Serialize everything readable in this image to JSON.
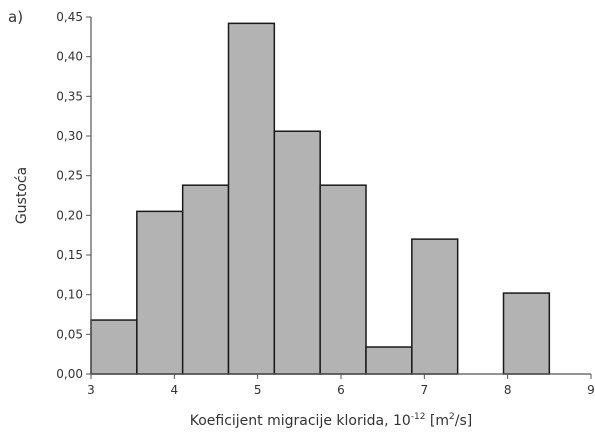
{
  "panel_label": "a)",
  "chart_data": {
    "type": "bar",
    "subtype": "histogram",
    "bins": [
      {
        "x0": 3.0,
        "x1": 3.55,
        "value": 0.068
      },
      {
        "x0": 3.55,
        "x1": 4.1,
        "value": 0.205
      },
      {
        "x0": 4.1,
        "x1": 4.65,
        "value": 0.238
      },
      {
        "x0": 4.65,
        "x1": 5.2,
        "value": 0.442
      },
      {
        "x0": 5.2,
        "x1": 5.75,
        "value": 0.306
      },
      {
        "x0": 5.75,
        "x1": 6.3,
        "value": 0.238
      },
      {
        "x0": 6.3,
        "x1": 6.85,
        "value": 0.034
      },
      {
        "x0": 6.85,
        "x1": 7.4,
        "value": 0.17
      },
      {
        "x0": 7.95,
        "x1": 8.5,
        "value": 0.102
      }
    ],
    "xlim": [
      3,
      9
    ],
    "ylim": [
      0,
      0.45
    ],
    "x_ticks": [
      "3",
      "4",
      "5",
      "6",
      "7",
      "8",
      "9"
    ],
    "y_ticks": [
      "0,00",
      "0,05",
      "0,10",
      "0,15",
      "0,20",
      "0,25",
      "0,30",
      "0,35",
      "0,40",
      "0,45"
    ],
    "ylabel": "Gustoća",
    "xlabel": {
      "main": "Koeficijent migracije klorida, 10",
      "exponent": "-12",
      "unit_before": " [m",
      "unit_exponent": "2",
      "unit_after": "/s]"
    },
    "grid": false,
    "bar_fill": "#b3b3b3",
    "bar_stroke": "#1a1a1a",
    "axis_color": "#555555"
  }
}
